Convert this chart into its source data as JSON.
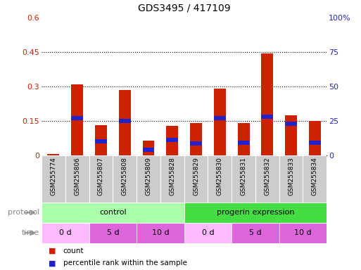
{
  "title": "GDS3495 / 417109",
  "samples": [
    "GSM255774",
    "GSM255806",
    "GSM255807",
    "GSM255808",
    "GSM255809",
    "GSM255828",
    "GSM255829",
    "GSM255830",
    "GSM255831",
    "GSM255832",
    "GSM255833",
    "GSM255834"
  ],
  "count_values": [
    0.005,
    0.31,
    0.13,
    0.285,
    0.065,
    0.128,
    0.14,
    0.29,
    0.14,
    0.445,
    0.175,
    0.15
  ],
  "percentile_values_pct": [
    0.0,
    27.0,
    10.0,
    25.0,
    4.0,
    11.0,
    8.5,
    27.0,
    9.0,
    28.0,
    23.0,
    9.0
  ],
  "left_ylim": [
    0,
    0.6
  ],
  "right_ylim": [
    0,
    100
  ],
  "left_yticks": [
    0,
    0.15,
    0.3,
    0.45,
    0.6
  ],
  "right_yticks": [
    0,
    25,
    50,
    75,
    100
  ],
  "left_yticklabels": [
    "0",
    "0.15",
    "0.3",
    "0.45",
    "0.6"
  ],
  "right_yticklabels": [
    "0",
    "25",
    "50",
    "75",
    "100%"
  ],
  "bar_color_red": "#cc2200",
  "bar_color_blue": "#2222cc",
  "protocol_row": [
    {
      "label": "control",
      "start": 0,
      "end": 6,
      "color": "#aaffaa"
    },
    {
      "label": "progerin expression",
      "start": 6,
      "end": 12,
      "color": "#44dd44"
    }
  ],
  "time_row": [
    {
      "label": "0 d",
      "start": 0,
      "end": 2,
      "color": "#ffbbff"
    },
    {
      "label": "5 d",
      "start": 2,
      "end": 4,
      "color": "#dd66dd"
    },
    {
      "label": "10 d",
      "start": 4,
      "end": 6,
      "color": "#dd66dd"
    },
    {
      "label": "0 d",
      "start": 6,
      "end": 8,
      "color": "#ffbbff"
    },
    {
      "label": "5 d",
      "start": 8,
      "end": 10,
      "color": "#dd66dd"
    },
    {
      "label": "10 d",
      "start": 10,
      "end": 12,
      "color": "#dd66dd"
    }
  ],
  "legend_labels": [
    "count",
    "percentile rank within the sample"
  ],
  "protocol_label": "protocol",
  "time_label": "time",
  "bg_color": "#ffffff",
  "tick_label_color_left": "#cc2200",
  "tick_label_color_right": "#2222cc",
  "tick_bg_color": "#cccccc",
  "bar_width": 0.5
}
